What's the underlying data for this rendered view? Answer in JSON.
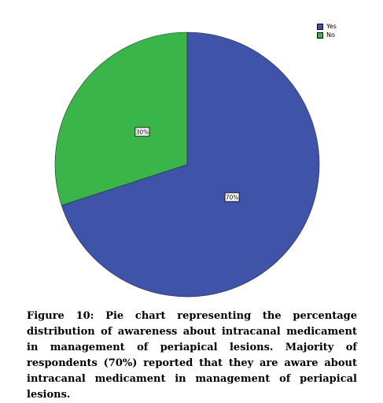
{
  "chart_data": {
    "type": "pie",
    "slices": [
      {
        "label": "Yes",
        "value": 70,
        "color": "#3f54a8",
        "data_label": "70%"
      },
      {
        "label": "No",
        "value": 30,
        "color": "#3ab54a",
        "data_label": "30%"
      }
    ],
    "legend": {
      "placement": "top-right",
      "entries": [
        "Yes",
        "No"
      ]
    }
  },
  "caption": {
    "text": "Figure 10: Pie chart representing the percentage distribution of awareness about intracanal medicament in management of periapical lesions. Majority of respondents (70%) reported that they are aware about intracanal medicament in management of periapical lesions."
  }
}
